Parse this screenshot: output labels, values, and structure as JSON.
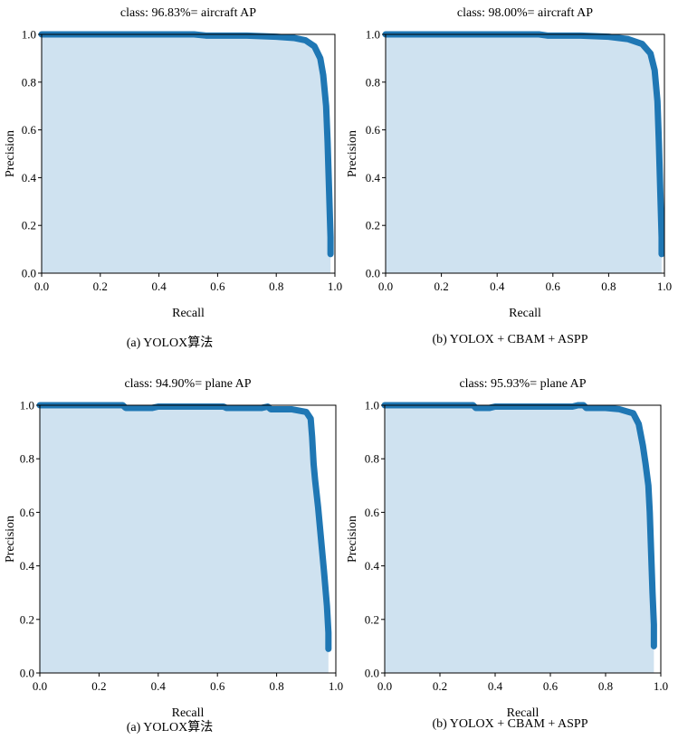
{
  "chart_data": [
    {
      "type": "area",
      "title": "class: 96.83%= aircraft AP",
      "xlabel": "Recall",
      "ylabel": "Precision",
      "xlim": [
        0.0,
        1.0
      ],
      "ylim": [
        0.0,
        1.0
      ],
      "xticks": [
        "0.0",
        "0.2",
        "0.4",
        "0.6",
        "0.8",
        "1.0"
      ],
      "yticks": [
        "0.0",
        "0.2",
        "0.4",
        "0.6",
        "0.8",
        "1.0"
      ],
      "grid": false,
      "line_color": "#1f77b4",
      "fill_color": "#cfe2f0",
      "caption": "(a) YOLOX算法",
      "series": [
        {
          "x": [
            0.0,
            0.3,
            0.52,
            0.56,
            0.7,
            0.8,
            0.86,
            0.9,
            0.93,
            0.95,
            0.96,
            0.97,
            0.975,
            0.98,
            0.985,
            0.985
          ],
          "y": [
            1.0,
            1.0,
            1.0,
            0.995,
            0.995,
            0.99,
            0.985,
            0.975,
            0.95,
            0.9,
            0.83,
            0.7,
            0.55,
            0.35,
            0.15,
            0.08
          ]
        }
      ]
    },
    {
      "type": "area",
      "title": "class: 98.00%= aircraft AP",
      "xlabel": "Recall",
      "ylabel": "Precision",
      "xlim": [
        0.0,
        1.0
      ],
      "ylim": [
        0.0,
        1.0
      ],
      "xticks": [
        "0.0",
        "0.2",
        "0.4",
        "0.6",
        "0.8",
        "1.0"
      ],
      "yticks": [
        "0.0",
        "0.2",
        "0.4",
        "0.6",
        "0.8",
        "1.0"
      ],
      "grid": false,
      "line_color": "#1f77b4",
      "fill_color": "#cfe2f0",
      "caption": "(b) YOLOX + CBAM + ASPP",
      "series": [
        {
          "x": [
            0.0,
            0.4,
            0.55,
            0.58,
            0.7,
            0.8,
            0.87,
            0.92,
            0.95,
            0.965,
            0.975,
            0.98,
            0.985,
            0.99,
            0.99
          ],
          "y": [
            1.0,
            1.0,
            1.0,
            0.995,
            0.995,
            0.99,
            0.98,
            0.96,
            0.92,
            0.85,
            0.72,
            0.55,
            0.35,
            0.15,
            0.08
          ]
        }
      ]
    },
    {
      "type": "area",
      "title": "class: 94.90%= plane AP",
      "xlabel": "Recall",
      "ylabel": "Precision",
      "xlim": [
        0.0,
        1.0
      ],
      "ylim": [
        0.0,
        1.0
      ],
      "xticks": [
        "0.0",
        "0.2",
        "0.4",
        "0.6",
        "0.8",
        "1.0"
      ],
      "yticks": [
        "0.0",
        "0.2",
        "0.4",
        "0.6",
        "0.8",
        "1.0"
      ],
      "grid": false,
      "line_color": "#1f77b4",
      "fill_color": "#cfe2f0",
      "caption": "(a) YOLOX算法",
      "series": [
        {
          "x": [
            0.0,
            0.28,
            0.29,
            0.38,
            0.4,
            0.62,
            0.63,
            0.75,
            0.77,
            0.78,
            0.85,
            0.9,
            0.915,
            0.92,
            0.925,
            0.93,
            0.94,
            0.95,
            0.96,
            0.97,
            0.975,
            0.975
          ],
          "y": [
            1.0,
            1.0,
            0.99,
            0.99,
            0.995,
            0.995,
            0.99,
            0.99,
            0.995,
            0.985,
            0.985,
            0.975,
            0.95,
            0.88,
            0.78,
            0.72,
            0.62,
            0.5,
            0.38,
            0.25,
            0.15,
            0.09
          ]
        }
      ]
    },
    {
      "type": "area",
      "title": "class: 95.93%= plane AP",
      "xlabel": "Recall",
      "ylabel": "Precision",
      "xlim": [
        0.0,
        1.0
      ],
      "ylim": [
        0.0,
        1.0
      ],
      "xticks": [
        "0.0",
        "0.2",
        "0.4",
        "0.6",
        "0.8",
        "1.0"
      ],
      "yticks": [
        "0.0",
        "0.2",
        "0.4",
        "0.6",
        "0.8",
        "1.0"
      ],
      "grid": false,
      "line_color": "#1f77b4",
      "fill_color": "#cfe2f0",
      "caption": "(b) YOLOX + CBAM + ASPP",
      "series": [
        {
          "x": [
            0.0,
            0.32,
            0.33,
            0.38,
            0.4,
            0.68,
            0.7,
            0.72,
            0.73,
            0.8,
            0.85,
            0.9,
            0.92,
            0.935,
            0.945,
            0.955,
            0.96,
            0.965,
            0.97,
            0.975,
            0.975
          ],
          "y": [
            1.0,
            1.0,
            0.99,
            0.99,
            0.995,
            0.995,
            1.0,
            1.0,
            0.99,
            0.99,
            0.985,
            0.97,
            0.93,
            0.85,
            0.78,
            0.7,
            0.6,
            0.45,
            0.3,
            0.18,
            0.1
          ]
        }
      ]
    }
  ]
}
